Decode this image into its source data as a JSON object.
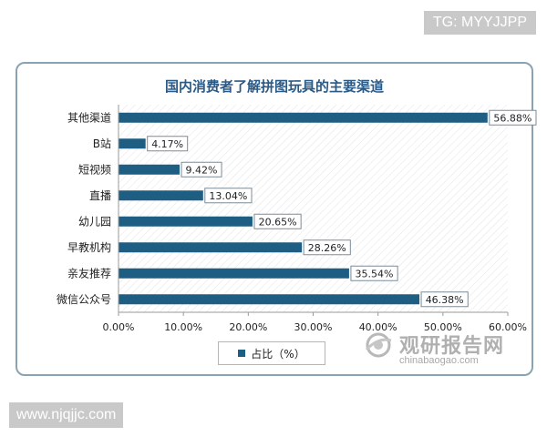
{
  "overlay": {
    "tg_label": "TG: MYYJJPP",
    "url_label": "www.njqjjc.com"
  },
  "watermark": {
    "name_cn": "观研报告网",
    "name_en": "chinabaogao.com",
    "icon": "globe-swoosh-icon"
  },
  "colors": {
    "bar": "#1e5e83",
    "title": "#2b5a86",
    "frame": "#8aa3b3"
  },
  "chart_data": {
    "type": "bar",
    "orientation": "horizontal",
    "title": "国内消费者了解拼图玩具的主要渠道",
    "categories": [
      "其他渠道",
      "B站",
      "短视频",
      "直播",
      "幼儿园",
      "早教机构",
      "亲友推荐",
      "微信公众号"
    ],
    "series": [
      {
        "name": "占比（%）",
        "values": [
          56.88,
          4.17,
          9.42,
          13.04,
          20.65,
          28.26,
          35.54,
          46.38
        ],
        "labels": [
          "56.88%",
          "4.17%",
          "9.42%",
          "13.04%",
          "20.65%",
          "28.26%",
          "35.54%",
          "46.38%"
        ]
      }
    ],
    "xlim": [
      0,
      60
    ],
    "xticks": [
      0,
      10,
      20,
      30,
      40,
      50,
      60
    ],
    "xtick_labels": [
      "0.00%",
      "10.00%",
      "20.00%",
      "30.00%",
      "40.00%",
      "50.00%",
      "60.00%"
    ],
    "legend_position": "bottom",
    "grid": false,
    "background": "diagonal-hatch"
  }
}
